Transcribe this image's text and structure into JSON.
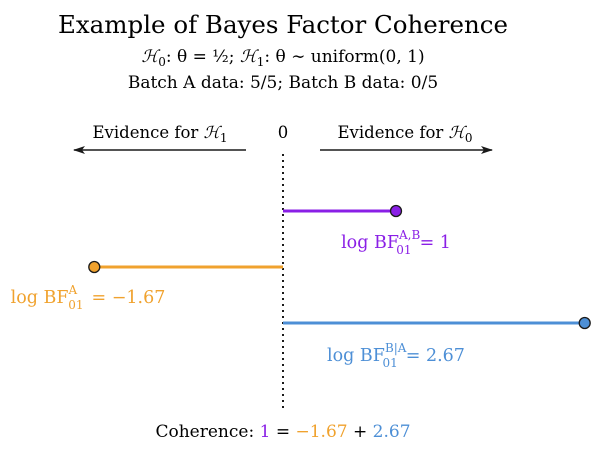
{
  "title": "Example of Bayes Factor Coherence",
  "hypotheses": {
    "h0_symbol": "ℋ",
    "h0_sub": "0",
    "h0_text": ": θ = ¹⁄₂; ",
    "h1_symbol": "ℋ",
    "h1_sub": "1",
    "h1_text": ": θ ∼ uniform(0, 1)"
  },
  "data_line": "Batch A data: 5/5; Batch B data: 0/5",
  "evidence": {
    "left_text": "Evidence for ",
    "left_symbol": "ℋ",
    "left_sub": "1",
    "zero": "0",
    "right_text": "Evidence for ",
    "right_symbol": "ℋ",
    "right_sub": "0"
  },
  "bars": [
    {
      "id": "ab",
      "value": 1,
      "color": "#8a1fe6",
      "label_prefix": "log BF",
      "label_sub": "01",
      "label_sup": "A,B",
      "label_value": "= 1"
    },
    {
      "id": "a",
      "value": -1.67,
      "color": "#f0a22e",
      "label_prefix": "log BF",
      "label_sub": "01",
      "label_sup": "A",
      "label_value": "= −1.67"
    },
    {
      "id": "ba",
      "value": 2.67,
      "color": "#4d8fd6",
      "label_prefix": "log BF",
      "label_sub": "01",
      "label_sup": "B|A",
      "label_value": "= 2.67"
    }
  ],
  "coherence": {
    "prefix": "Coherence: ",
    "term1": "1",
    "eq": " = ",
    "term2": "−1.67",
    "plus": " + ",
    "term3": "2.67"
  }
}
